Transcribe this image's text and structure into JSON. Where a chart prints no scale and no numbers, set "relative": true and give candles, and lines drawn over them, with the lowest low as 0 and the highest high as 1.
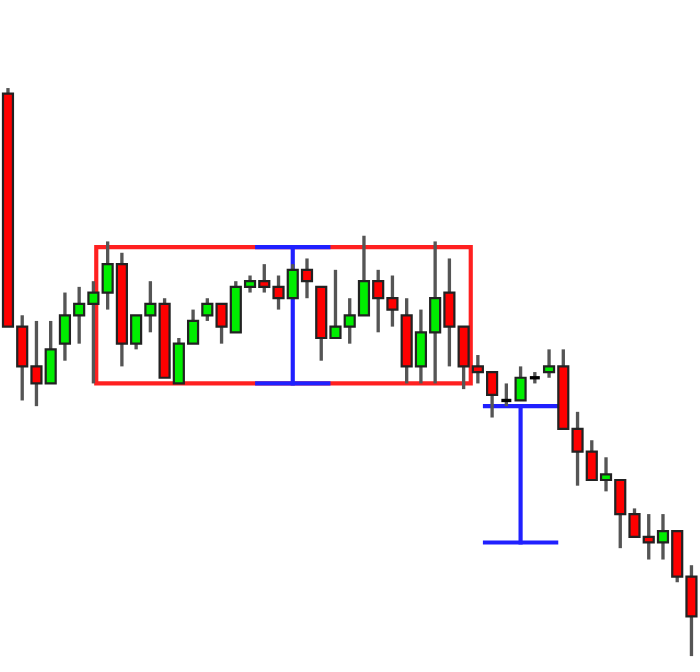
{
  "chart_data": {
    "type": "candlestick",
    "relative": true,
    "categories": [
      null,
      null,
      null,
      null,
      null,
      null,
      null,
      null,
      null,
      null,
      null,
      null,
      null,
      null,
      null,
      null,
      null,
      null,
      null,
      null,
      null,
      null,
      null,
      null,
      null,
      null,
      null,
      null,
      null,
      null,
      null,
      null,
      null,
      null,
      null,
      null,
      null,
      null,
      null,
      null,
      null,
      null,
      null,
      null,
      null,
      null,
      null,
      null,
      null
    ],
    "ohlc": [
      [
        0.99,
        1.0,
        0.58,
        0.58
      ],
      [
        0.58,
        0.6,
        0.45,
        0.51
      ],
      [
        0.51,
        0.59,
        0.44,
        0.48
      ],
      [
        0.48,
        0.59,
        0.48,
        0.54
      ],
      [
        0.55,
        0.64,
        0.52,
        0.6
      ],
      [
        0.6,
        0.65,
        0.55,
        0.62
      ],
      [
        0.62,
        0.66,
        0.48,
        0.64
      ],
      [
        0.64,
        0.73,
        0.61,
        0.69
      ],
      [
        0.69,
        0.71,
        0.51,
        0.55
      ],
      [
        0.55,
        0.6,
        0.54,
        0.6
      ],
      [
        0.6,
        0.66,
        0.57,
        0.62
      ],
      [
        0.62,
        0.63,
        0.49,
        0.49
      ],
      [
        0.48,
        0.56,
        0.48,
        0.55
      ],
      [
        0.55,
        0.61,
        0.55,
        0.59
      ],
      [
        0.6,
        0.63,
        0.59,
        0.62
      ],
      [
        0.62,
        0.62,
        0.55,
        0.58
      ],
      [
        0.57,
        0.66,
        0.57,
        0.65
      ],
      [
        0.65,
        0.67,
        0.64,
        0.66
      ],
      [
        0.66,
        0.69,
        0.64,
        0.65
      ],
      [
        0.65,
        0.67,
        0.61,
        0.63
      ],
      [
        0.63,
        0.69,
        0.63,
        0.68
      ],
      [
        0.68,
        0.7,
        0.63,
        0.66
      ],
      [
        0.65,
        0.65,
        0.52,
        0.56
      ],
      [
        0.56,
        0.68,
        0.56,
        0.58
      ],
      [
        0.58,
        0.63,
        0.55,
        0.6
      ],
      [
        0.6,
        0.74,
        0.6,
        0.66
      ],
      [
        0.66,
        0.68,
        0.57,
        0.63
      ],
      [
        0.63,
        0.67,
        0.58,
        0.61
      ],
      [
        0.6,
        0.63,
        0.48,
        0.51
      ],
      [
        0.51,
        0.61,
        0.48,
        0.57
      ],
      [
        0.57,
        0.73,
        0.48,
        0.63
      ],
      [
        0.64,
        0.7,
        0.51,
        0.58
      ],
      [
        0.58,
        0.58,
        0.47,
        0.51
      ],
      [
        0.51,
        0.53,
        0.48,
        0.5
      ],
      [
        0.5,
        0.5,
        0.42,
        0.46
      ],
      [
        0.45,
        0.48,
        0.44,
        0.45
      ],
      [
        0.45,
        0.51,
        0.45,
        0.49
      ],
      [
        0.49,
        0.5,
        0.48,
        0.49
      ],
      [
        0.5,
        0.54,
        0.49,
        0.51
      ],
      [
        0.51,
        0.54,
        0.4,
        0.4
      ],
      [
        0.4,
        0.43,
        0.3,
        0.36
      ],
      [
        0.36,
        0.38,
        0.31,
        0.31
      ],
      [
        0.31,
        0.35,
        0.29,
        0.32
      ],
      [
        0.31,
        0.31,
        0.19,
        0.25
      ],
      [
        0.25,
        0.26,
        0.21,
        0.21
      ],
      [
        0.21,
        0.25,
        0.17,
        0.2
      ],
      [
        0.2,
        0.25,
        0.17,
        0.22
      ],
      [
        0.22,
        0.22,
        0.13,
        0.14
      ],
      [
        0.14,
        0.16,
        0.0,
        0.07
      ]
    ],
    "colors": [
      "#ff0000",
      "#ff0000",
      "#ff0000",
      "#00ee00",
      "#00ee00",
      "#00ee00",
      "#00ee00",
      "#00ee00",
      "#ff0000",
      "#00ee00",
      "#00ee00",
      "#ff0000",
      "#00ee00",
      "#00ee00",
      "#00ee00",
      "#ff0000",
      "#00ee00",
      "#00ee00",
      "#ff0000",
      "#ff0000",
      "#00ee00",
      "#ff0000",
      "#ff0000",
      "#00ee00",
      "#00ee00",
      "#00ee00",
      "#ff0000",
      "#ff0000",
      "#ff0000",
      "#00ee00",
      "#00ee00",
      "#ff0000",
      "#ff0000",
      "#ff0000",
      "#ff0000",
      "#000000",
      "#00ee00",
      "#000000",
      "#00ee00",
      "#ff0000",
      "#ff0000",
      "#ff0000",
      "#00ee00",
      "#ff0000",
      "#ff0000",
      "#ff0000",
      "#00ee00",
      "#ff0000",
      "#ff0000"
    ]
  }
}
